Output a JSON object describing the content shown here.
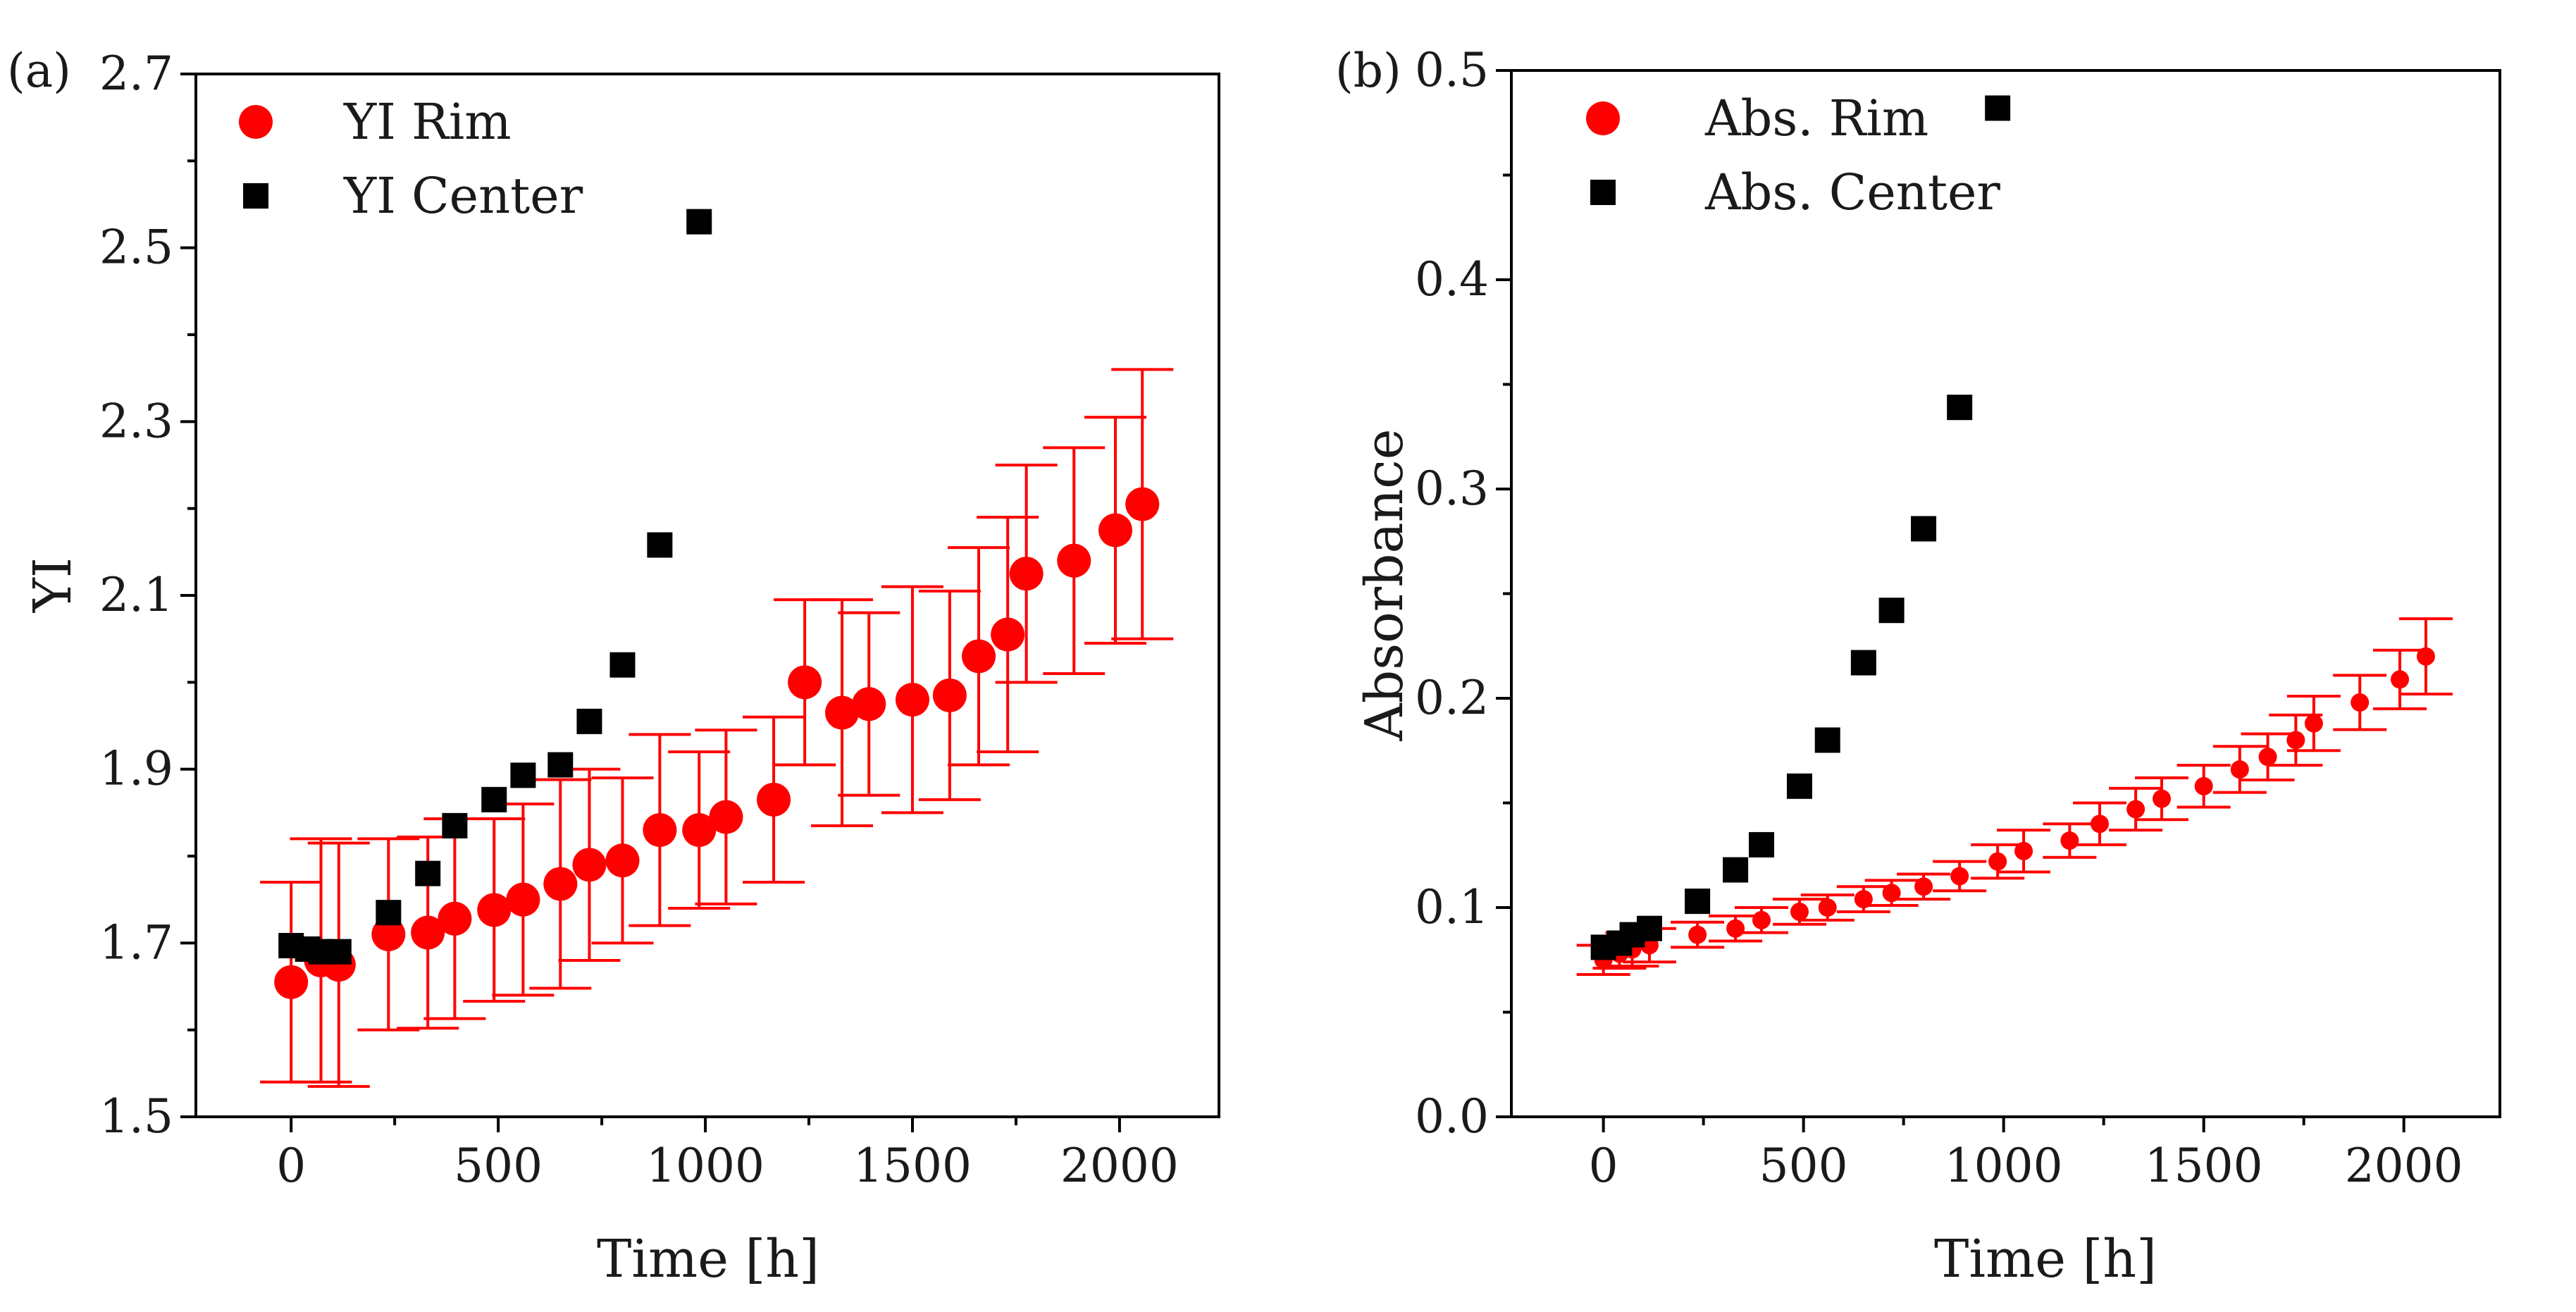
{
  "chart_data": [
    {
      "type": "scatter",
      "panel_label": "(a)",
      "xlabel": "Time [h]",
      "ylabel": "YI",
      "xlim": [
        -230,
        2240
      ],
      "ylim": [
        1.5,
        2.7
      ],
      "xticks": [
        0,
        500,
        1000,
        1500,
        2000
      ],
      "yticks": [
        1.5,
        1.7,
        1.9,
        2.1,
        2.3,
        2.5,
        2.7
      ],
      "grid": false,
      "legend_position": "top-left",
      "series": [
        {
          "name": "YI Rim",
          "marker": "circle",
          "color": "#ff0000",
          "points": [
            {
              "x": 0,
              "y": 1.655,
              "err": 0.115
            },
            {
              "x": 72,
              "y": 1.68,
              "err": 0.14
            },
            {
              "x": 115,
              "y": 1.675,
              "err": 0.14
            },
            {
              "x": 235,
              "y": 1.71,
              "err": 0.11
            },
            {
              "x": 330,
              "y": 1.712,
              "err": 0.11
            },
            {
              "x": 395,
              "y": 1.728,
              "err": 0.115
            },
            {
              "x": 490,
              "y": 1.738,
              "err": 0.105
            },
            {
              "x": 560,
              "y": 1.75,
              "err": 0.11
            },
            {
              "x": 650,
              "y": 1.768,
              "err": 0.12
            },
            {
              "x": 720,
              "y": 1.79,
              "err": 0.11
            },
            {
              "x": 800,
              "y": 1.795,
              "err": 0.095
            },
            {
              "x": 890,
              "y": 1.83,
              "err": 0.11
            },
            {
              "x": 985,
              "y": 1.83,
              "err": 0.09
            },
            {
              "x": 1050,
              "y": 1.845,
              "err": 0.1
            },
            {
              "x": 1165,
              "y": 1.865,
              "err": 0.095
            },
            {
              "x": 1240,
              "y": 2.0,
              "err": 0.095
            },
            {
              "x": 1330,
              "y": 1.965,
              "err": 0.13
            },
            {
              "x": 1395,
              "y": 1.975,
              "err": 0.105
            },
            {
              "x": 1500,
              "y": 1.98,
              "err": 0.13
            },
            {
              "x": 1590,
              "y": 1.985,
              "err": 0.12
            },
            {
              "x": 1660,
              "y": 2.03,
              "err": 0.125
            },
            {
              "x": 1730,
              "y": 2.055,
              "err": 0.135
            },
            {
              "x": 1775,
              "y": 2.125,
              "err": 0.125
            },
            {
              "x": 1890,
              "y": 2.14,
              "err": 0.13
            },
            {
              "x": 1990,
              "y": 2.175,
              "err": 0.13
            },
            {
              "x": 2055,
              "y": 2.205,
              "err": 0.155
            }
          ]
        },
        {
          "name": "YI Center",
          "marker": "square",
          "color": "#000000",
          "points": [
            {
              "x": 0,
              "y": 1.697
            },
            {
              "x": 40,
              "y": 1.693
            },
            {
              "x": 72,
              "y": 1.69
            },
            {
              "x": 115,
              "y": 1.69
            },
            {
              "x": 235,
              "y": 1.735
            },
            {
              "x": 330,
              "y": 1.78
            },
            {
              "x": 395,
              "y": 1.835
            },
            {
              "x": 490,
              "y": 1.865
            },
            {
              "x": 560,
              "y": 1.893
            },
            {
              "x": 650,
              "y": 1.905
            },
            {
              "x": 720,
              "y": 1.955
            },
            {
              "x": 800,
              "y": 2.02
            },
            {
              "x": 890,
              "y": 2.158
            },
            {
              "x": 985,
              "y": 2.53
            }
          ]
        }
      ]
    },
    {
      "type": "scatter",
      "panel_label": "(b)",
      "xlabel": "Time [h]",
      "ylabel": "Absorbance",
      "xlim": [
        -230,
        2240
      ],
      "ylim": [
        0.0,
        0.5
      ],
      "xticks": [
        0,
        500,
        1000,
        1500,
        2000
      ],
      "yticks": [
        0.0,
        0.1,
        0.2,
        0.3,
        0.4,
        0.5
      ],
      "grid": false,
      "legend_position": "top-left",
      "series": [
        {
          "name": "Abs. Rim",
          "marker": "circle",
          "color": "#ff0000",
          "points": [
            {
              "x": 0,
              "y": 0.075,
              "err": 0.007
            },
            {
              "x": 40,
              "y": 0.078,
              "err": 0.007
            },
            {
              "x": 72,
              "y": 0.08,
              "err": 0.008
            },
            {
              "x": 115,
              "y": 0.082,
              "err": 0.008
            },
            {
              "x": 235,
              "y": 0.087,
              "err": 0.006
            },
            {
              "x": 330,
              "y": 0.09,
              "err": 0.006
            },
            {
              "x": 395,
              "y": 0.094,
              "err": 0.006
            },
            {
              "x": 490,
              "y": 0.098,
              "err": 0.006
            },
            {
              "x": 560,
              "y": 0.1,
              "err": 0.006
            },
            {
              "x": 650,
              "y": 0.104,
              "err": 0.006
            },
            {
              "x": 720,
              "y": 0.107,
              "err": 0.006
            },
            {
              "x": 800,
              "y": 0.11,
              "err": 0.006
            },
            {
              "x": 890,
              "y": 0.115,
              "err": 0.007
            },
            {
              "x": 985,
              "y": 0.122,
              "err": 0.008
            },
            {
              "x": 1050,
              "y": 0.127,
              "err": 0.01
            },
            {
              "x": 1165,
              "y": 0.132,
              "err": 0.008
            },
            {
              "x": 1240,
              "y": 0.14,
              "err": 0.01
            },
            {
              "x": 1330,
              "y": 0.147,
              "err": 0.01
            },
            {
              "x": 1395,
              "y": 0.152,
              "err": 0.01
            },
            {
              "x": 1500,
              "y": 0.158,
              "err": 0.01
            },
            {
              "x": 1590,
              "y": 0.166,
              "err": 0.011
            },
            {
              "x": 1660,
              "y": 0.172,
              "err": 0.011
            },
            {
              "x": 1730,
              "y": 0.18,
              "err": 0.012
            },
            {
              "x": 1775,
              "y": 0.188,
              "err": 0.013
            },
            {
              "x": 1890,
              "y": 0.198,
              "err": 0.013
            },
            {
              "x": 1990,
              "y": 0.209,
              "err": 0.014
            },
            {
              "x": 2055,
              "y": 0.22,
              "err": 0.018
            }
          ]
        },
        {
          "name": "Abs. Center",
          "marker": "square",
          "color": "#000000",
          "points": [
            {
              "x": 0,
              "y": 0.081
            },
            {
              "x": 40,
              "y": 0.083
            },
            {
              "x": 72,
              "y": 0.087
            },
            {
              "x": 115,
              "y": 0.09
            },
            {
              "x": 235,
              "y": 0.103
            },
            {
              "x": 330,
              "y": 0.118
            },
            {
              "x": 395,
              "y": 0.13
            },
            {
              "x": 490,
              "y": 0.158
            },
            {
              "x": 560,
              "y": 0.18
            },
            {
              "x": 650,
              "y": 0.217
            },
            {
              "x": 720,
              "y": 0.242
            },
            {
              "x": 800,
              "y": 0.281
            },
            {
              "x": 890,
              "y": 0.339
            },
            {
              "x": 985,
              "y": 0.482
            }
          ]
        }
      ]
    }
  ]
}
